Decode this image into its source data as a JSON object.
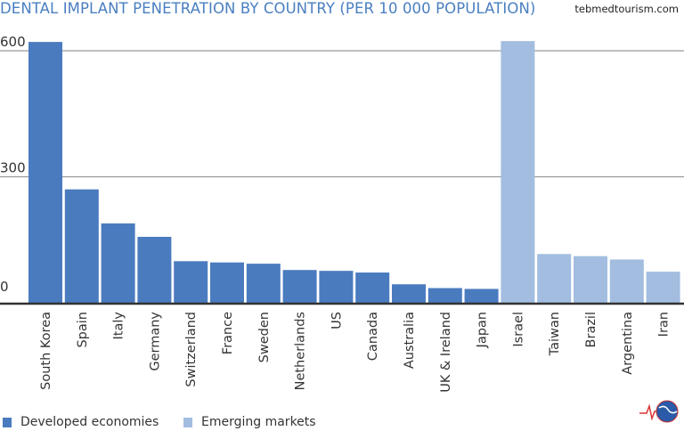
{
  "chart_data": {
    "type": "bar",
    "title": "DENTAL IMPLANT PENETRATION BY COUNTRY (PER 10 000 POPULATION)",
    "xlabel": "",
    "ylabel": "",
    "ylim": [
      0,
      640
    ],
    "yticks": [
      0,
      300,
      600
    ],
    "grid": true,
    "legend_position": "bottom-left",
    "categories": [
      "South Korea",
      "Spain",
      "Italy",
      "Germany",
      "Switzerland",
      "France",
      "Sweden",
      "Netherlands",
      "US",
      "Canada",
      "Australia",
      "UK & Ireland",
      "Japan",
      "Israel",
      "Taiwan",
      "Brazil",
      "Argentina",
      "Iran"
    ],
    "values": [
      621,
      270,
      189,
      157,
      99,
      96,
      93,
      78,
      76,
      72,
      44,
      35,
      33,
      623,
      116,
      111,
      103,
      74
    ],
    "groups": [
      "Developed economies",
      "Developed economies",
      "Developed economies",
      "Developed economies",
      "Developed economies",
      "Developed economies",
      "Developed economies",
      "Developed economies",
      "Developed economies",
      "Developed economies",
      "Developed economies",
      "Developed economies",
      "Developed economies",
      "Emerging markets",
      "Emerging markets",
      "Emerging markets",
      "Emerging markets",
      "Emerging markets"
    ],
    "series_legend": [
      {
        "name": "Developed economies",
        "color": "#4a7bbf"
      },
      {
        "name": "Emerging markets",
        "color": "#a2bde0"
      }
    ]
  },
  "source": "tebmedtourism.com",
  "colors": {
    "title": "#4a7fc1",
    "grid": "#999999",
    "axis": "#333333"
  }
}
